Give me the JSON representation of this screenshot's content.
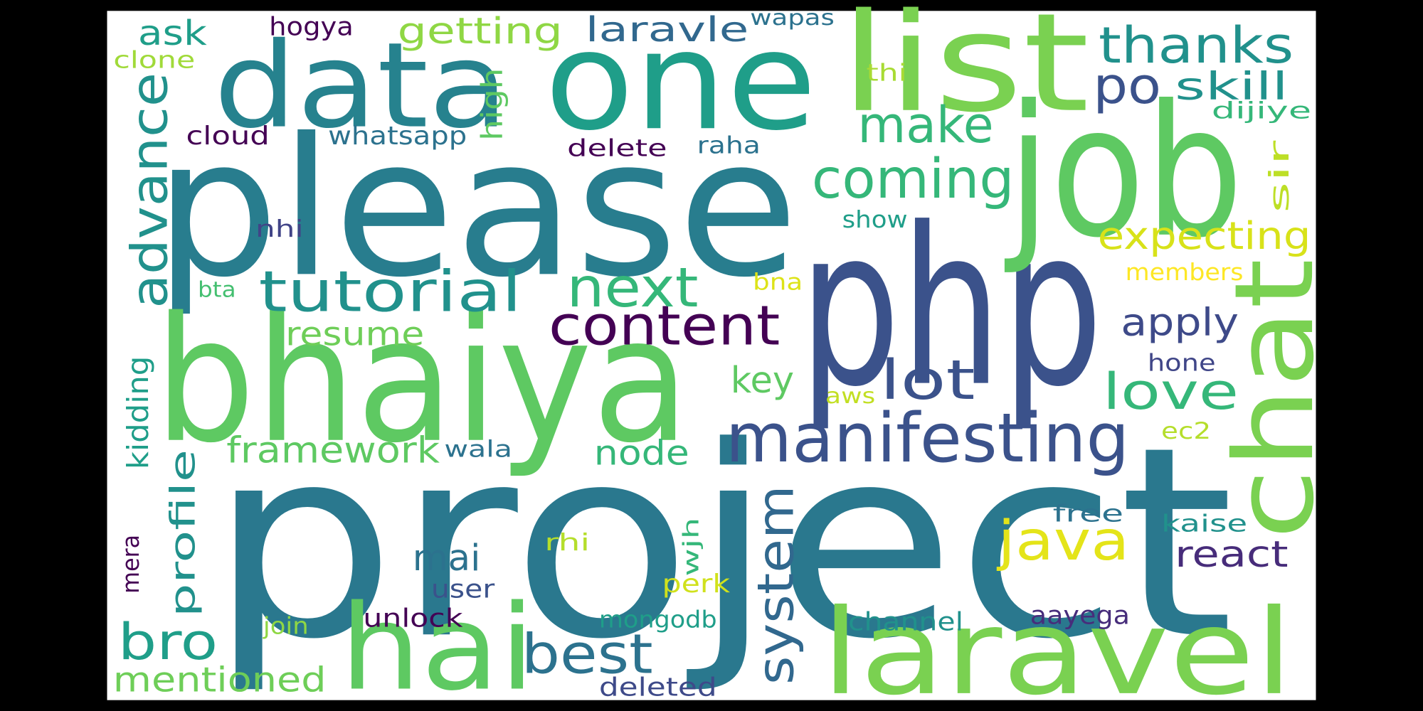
{
  "words": [
    {
      "text": "project",
      "color": "#2a788e"
    },
    {
      "text": "please",
      "color": "#287d8e"
    },
    {
      "text": "php",
      "color": "#3b528b"
    },
    {
      "text": "bhaiya",
      "color": "#5ec962"
    },
    {
      "text": "job",
      "color": "#5ec962"
    },
    {
      "text": "one",
      "color": "#1f9e89"
    },
    {
      "text": "data",
      "color": "#26828e"
    },
    {
      "text": "list",
      "color": "#7ad151"
    },
    {
      "text": "chat",
      "color": "#7ad151"
    },
    {
      "text": "laravel",
      "color": "#7ad151"
    },
    {
      "text": "hai",
      "color": "#5ec962"
    },
    {
      "text": "manifesting",
      "color": "#3b528b"
    },
    {
      "text": "content",
      "color": "#440154"
    },
    {
      "text": "tutorial",
      "color": "#21918c"
    },
    {
      "text": "next",
      "color": "#35b779"
    },
    {
      "text": "coming",
      "color": "#35b779"
    },
    {
      "text": "make",
      "color": "#35b779"
    },
    {
      "text": "thanks",
      "color": "#21918c"
    },
    {
      "text": "po",
      "color": "#3b528b"
    },
    {
      "text": "skill",
      "color": "#21918c"
    },
    {
      "text": "dijiye",
      "color": "#35b779"
    },
    {
      "text": "sir",
      "color": "#bddf26"
    },
    {
      "text": "expecting",
      "color": "#d8e219"
    },
    {
      "text": "members",
      "color": "#fde725"
    },
    {
      "text": "apply",
      "color": "#3e4a89"
    },
    {
      "text": "hone",
      "color": "#404688"
    },
    {
      "text": "love",
      "color": "#35b779"
    },
    {
      "text": "ec2",
      "color": "#b5de2b"
    },
    {
      "text": "free",
      "color": "#2c728e"
    },
    {
      "text": "kaise",
      "color": "#21918c"
    },
    {
      "text": "react",
      "color": "#472c7a"
    },
    {
      "text": "java",
      "color": "#e4e419"
    },
    {
      "text": "system",
      "color": "#31688e"
    },
    {
      "text": "lot",
      "color": "#3b528b"
    },
    {
      "text": "key",
      "color": "#5ec962"
    },
    {
      "text": "aws",
      "color": "#c2df23"
    },
    {
      "text": "bna",
      "color": "#dde318"
    },
    {
      "text": "show",
      "color": "#1f9e89"
    },
    {
      "text": "raha",
      "color": "#2c728e"
    },
    {
      "text": "delete",
      "color": "#440154"
    },
    {
      "text": "thi",
      "color": "#a8db34"
    },
    {
      "text": "wapas",
      "color": "#2c728e"
    },
    {
      "text": "laravle",
      "color": "#31688e"
    },
    {
      "text": "getting",
      "color": "#8fd744"
    },
    {
      "text": "high",
      "color": "#5ec962"
    },
    {
      "text": "ask",
      "color": "#1f9e89"
    },
    {
      "text": "hogya",
      "color": "#440154"
    },
    {
      "text": "clone",
      "color": "#a0da39"
    },
    {
      "text": "advance",
      "color": "#21918c"
    },
    {
      "text": "cloud",
      "color": "#440154"
    },
    {
      "text": "whatsapp",
      "color": "#2c728e"
    },
    {
      "text": "nhi",
      "color": "#414487"
    },
    {
      "text": "bta",
      "color": "#44bf70"
    },
    {
      "text": "resume",
      "color": "#6ece58"
    },
    {
      "text": "framework",
      "color": "#5ec962"
    },
    {
      "text": "wala",
      "color": "#2c728e"
    },
    {
      "text": "node",
      "color": "#35b779"
    },
    {
      "text": "kidding",
      "color": "#1f9e89"
    },
    {
      "text": "mera",
      "color": "#440154"
    },
    {
      "text": "profile",
      "color": "#21918c"
    },
    {
      "text": "bro",
      "color": "#1f9e89"
    },
    {
      "text": "mentioned",
      "color": "#6ece58"
    },
    {
      "text": "join",
      "color": "#8fd744"
    },
    {
      "text": "unlock",
      "color": "#440154"
    },
    {
      "text": "user",
      "color": "#3b528b"
    },
    {
      "text": "mai",
      "color": "#2c728e"
    },
    {
      "text": "rhi",
      "color": "#b5de2b"
    },
    {
      "text": "best",
      "color": "#2c728e"
    },
    {
      "text": "wjh",
      "color": "#35b779"
    },
    {
      "text": "perk",
      "color": "#d0e11c"
    },
    {
      "text": "mongodb",
      "color": "#1f9e89"
    },
    {
      "text": "deleted",
      "color": "#3e4a89"
    },
    {
      "text": "channel",
      "color": "#21918c"
    },
    {
      "text": "aayega",
      "color": "#472d7b"
    }
  ]
}
